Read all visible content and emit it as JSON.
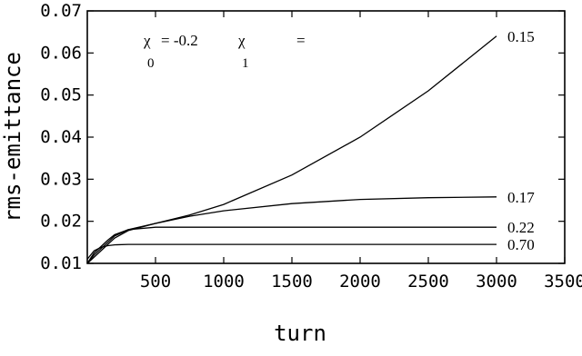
{
  "chart_data": {
    "type": "line",
    "xlabel": "turn",
    "ylabel": "rms-emittance",
    "xlim": [
      0,
      3500
    ],
    "ylim": [
      0.01,
      0.07
    ],
    "xticks": [
      "500",
      "1000",
      "1500",
      "2000",
      "2500",
      "3000",
      "3500"
    ],
    "yticks": [
      "0.01",
      "0.02",
      "0.03",
      "0.04",
      "0.05",
      "0.06",
      "0.07"
    ],
    "annotation": {
      "chi": "χ",
      "sub0": "0",
      "value0": "= -0.2",
      "sub1": "1",
      "eq1": "="
    },
    "series": [
      {
        "name": "0.15",
        "x": [
          0,
          50,
          100,
          150,
          200,
          300,
          500,
          750,
          1000,
          1500,
          2000,
          2500,
          3000
        ],
        "y": [
          0.01,
          0.0115,
          0.013,
          0.0145,
          0.016,
          0.0178,
          0.0195,
          0.0215,
          0.024,
          0.031,
          0.04,
          0.051,
          0.064
        ]
      },
      {
        "name": "0.17",
        "x": [
          0,
          50,
          100,
          150,
          200,
          300,
          500,
          750,
          1000,
          1500,
          2000,
          2500,
          3000
        ],
        "y": [
          0.01,
          0.012,
          0.0135,
          0.015,
          0.0165,
          0.018,
          0.0195,
          0.0212,
          0.0225,
          0.0242,
          0.0252,
          0.0256,
          0.0258
        ]
      },
      {
        "name": "0.22",
        "x": [
          0,
          50,
          100,
          150,
          200,
          300,
          500,
          1000,
          2000,
          3000
        ],
        "y": [
          0.01,
          0.0125,
          0.014,
          0.0155,
          0.0168,
          0.018,
          0.0186,
          0.0186,
          0.0186,
          0.0186
        ]
      },
      {
        "name": "0.70",
        "x": [
          0,
          50,
          100,
          150,
          200,
          300,
          500,
          1000,
          2000,
          3000
        ],
        "y": [
          0.011,
          0.013,
          0.0138,
          0.0142,
          0.0144,
          0.0145,
          0.0145,
          0.0145,
          0.0145,
          0.0145
        ]
      }
    ]
  }
}
